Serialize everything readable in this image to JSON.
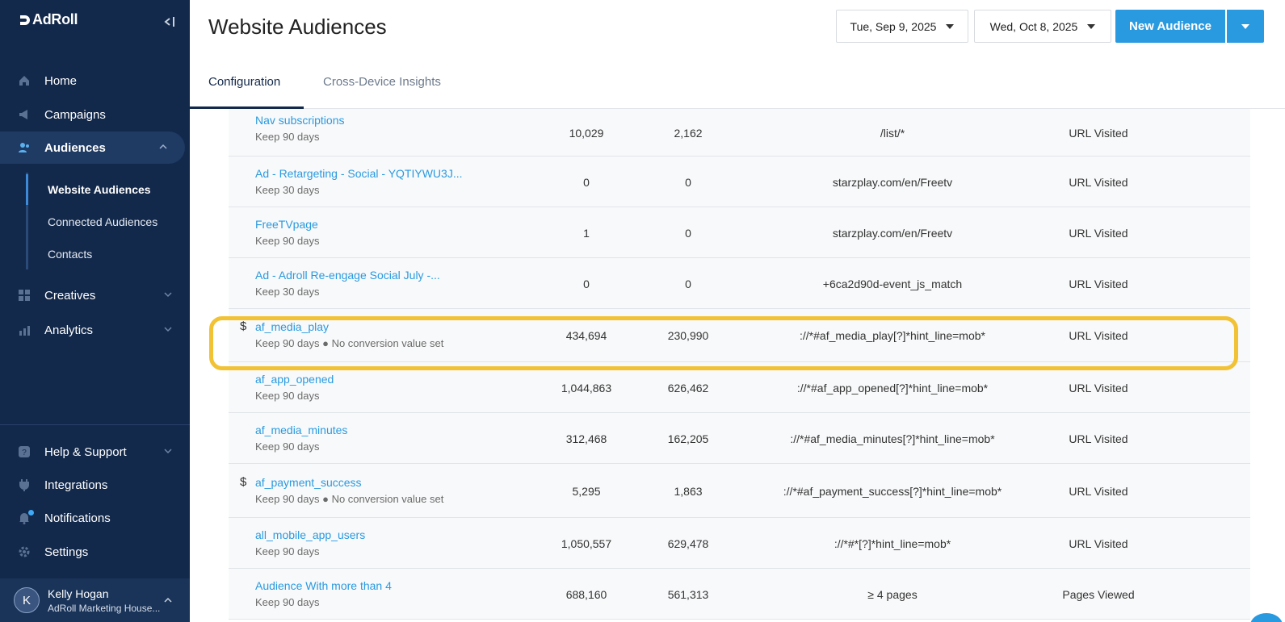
{
  "sidebar": {
    "logo": "AdRoll",
    "nav": [
      {
        "label": "Home",
        "icon": "home-icon"
      },
      {
        "label": "Campaigns",
        "icon": "megaphone-icon"
      },
      {
        "label": "Audiences",
        "icon": "people-icon"
      },
      {
        "label": "Creatives",
        "icon": "grid-icon"
      },
      {
        "label": "Analytics",
        "icon": "chart-icon"
      },
      {
        "label": "Help & Support",
        "icon": "help-icon"
      },
      {
        "label": "Integrations",
        "icon": "plug-icon"
      },
      {
        "label": "Notifications",
        "icon": "bell-icon"
      },
      {
        "label": "Settings",
        "icon": "gear-icon"
      }
    ],
    "subnav": [
      "Website Audiences",
      "Connected Audiences",
      "Contacts"
    ],
    "user": {
      "initial": "K",
      "name": "Kelly Hogan",
      "org": "AdRoll Marketing House..."
    }
  },
  "header": {
    "title": "Website Audiences",
    "start_date": "Tue, Sep 9, 2025",
    "end_date": "Wed, Oct 8, 2025",
    "new_audience": "New Audience"
  },
  "tabs": [
    "Configuration",
    "Cross-Device Insights"
  ],
  "rows": [
    {
      "name": "Nav subscriptions",
      "keep": "Keep 90 days",
      "a": "10,029",
      "b": "2,162",
      "rule": "/list/*",
      "type": "URL Visited",
      "dollar": ""
    },
    {
      "name": "Ad - Retargeting - Social - YQTIYWU3J...",
      "keep": "Keep 30 days",
      "a": "0",
      "b": "0",
      "rule": "starzplay.com/en/Freetv",
      "type": "URL Visited",
      "dollar": ""
    },
    {
      "name": "FreeTVpage",
      "keep": "Keep 90 days",
      "a": "1",
      "b": "0",
      "rule": "starzplay.com/en/Freetv",
      "type": "URL Visited",
      "dollar": ""
    },
    {
      "name": "Ad - Adroll Re-engage Social July -...",
      "keep": "Keep 30 days",
      "a": "0",
      "b": "0",
      "rule": "+6ca2d90d-event_js_match",
      "type": "URL Visited",
      "dollar": ""
    },
    {
      "name": "af_media_play",
      "keep": "Keep 90 days ● No conversion value set",
      "a": "434,694",
      "b": "230,990",
      "rule": "://*#af_media_play[?]*hint_line=mob*",
      "type": "URL Visited",
      "dollar": "$"
    },
    {
      "name": "af_app_opened",
      "keep": "Keep 90 days",
      "a": "1,044,863",
      "b": "626,462",
      "rule": "://*#af_app_opened[?]*hint_line=mob*",
      "type": "URL Visited",
      "dollar": ""
    },
    {
      "name": "af_media_minutes",
      "keep": "Keep 90 days",
      "a": "312,468",
      "b": "162,205",
      "rule": "://*#af_media_minutes[?]*hint_line=mob*",
      "type": "URL Visited",
      "dollar": ""
    },
    {
      "name": "af_payment_success",
      "keep": "Keep 90 days ● No conversion value set",
      "a": "5,295",
      "b": "1,863",
      "rule": "://*#af_payment_success[?]*hint_line=mob*",
      "type": "URL Visited",
      "dollar": "$"
    },
    {
      "name": "all_mobile_app_users",
      "keep": "Keep 90 days",
      "a": "1,050,557",
      "b": "629,478",
      "rule": "://*#*[?]*hint_line=mob*",
      "type": "URL Visited",
      "dollar": ""
    },
    {
      "name": "Audience With more than 4",
      "keep": "Keep 90 days",
      "a": "688,160",
      "b": "561,313",
      "rule": "≥ 4 pages",
      "type": "Pages Viewed",
      "dollar": ""
    }
  ],
  "colors": {
    "sidebar": "#13294b",
    "accent": "#2a9ae0",
    "highlight": "#f2c235"
  }
}
